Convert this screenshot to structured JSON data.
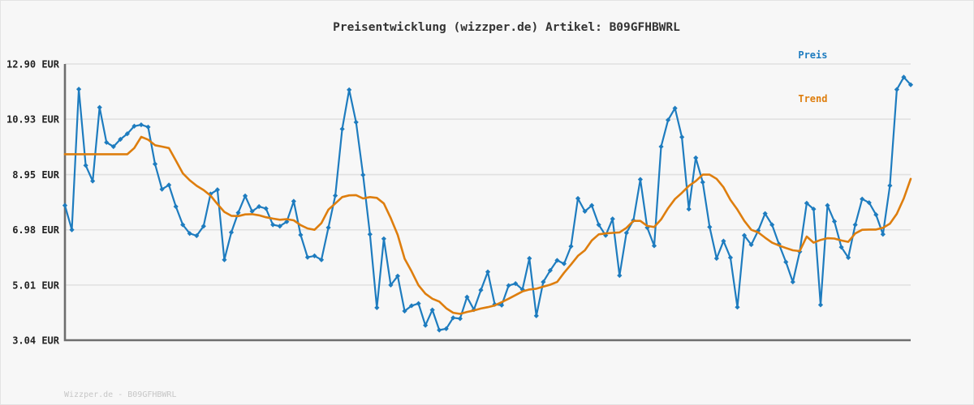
{
  "header": {
    "title": "Preisentwicklung (wizzper.de) Artikel: B09GFHBWRL"
  },
  "legend": {
    "items": [
      {
        "label": "Preis",
        "color": "#1e7cbf"
      },
      {
        "label": "Trend",
        "color": "#de7e0e"
      }
    ]
  },
  "footer": {
    "text": "Wizzper.de - B09GFHBWRL"
  },
  "colors": {
    "background": "#f7f7f7",
    "grid": "#e0e0e0",
    "axis": "#6e6e6e",
    "tick_label": "#222222",
    "title": "#333333",
    "watermark": "#c6c6c6",
    "price_line": "#1e7cbf",
    "trend_line": "#de7e0e"
  },
  "chart_data": {
    "type": "line",
    "title": "Preisentwicklung (wizzper.de) Artikel: B09GFHBWRL",
    "xlabel": "",
    "ylabel": "",
    "currency": "EUR",
    "grid": true,
    "legend_position": "top-right",
    "x_tick_labels": [],
    "ylim": [
      3.04,
      12.9
    ],
    "y_ticks": [
      {
        "label": "12.90 EUR",
        "value": 12.9
      },
      {
        "label": "10.93 EUR",
        "value": 10.93
      },
      {
        "label": "8.95 EUR",
        "value": 8.95
      },
      {
        "label": "6.98 EUR",
        "value": 6.98
      },
      {
        "label": "5.01 EUR",
        "value": 5.01
      },
      {
        "label": "3.04 EUR",
        "value": 3.04
      }
    ],
    "series": [
      {
        "name": "Preis",
        "color": "#1e7cbf",
        "marker": "diamond",
        "line_width": 2.2,
        "values": [
          7.85,
          6.98,
          12.0,
          9.28,
          8.72,
          11.35,
          10.1,
          9.95,
          10.21,
          10.41,
          10.68,
          10.73,
          10.65,
          9.33,
          8.43,
          8.58,
          7.81,
          7.16,
          6.85,
          6.77,
          7.11,
          8.26,
          8.41,
          5.91,
          6.89,
          7.59,
          8.19,
          7.64,
          7.81,
          7.74,
          7.16,
          7.11,
          7.27,
          8.0,
          6.8,
          6.0,
          6.05,
          5.91,
          7.06,
          8.2,
          10.58,
          11.98,
          10.82,
          8.94,
          6.82,
          4.2,
          6.66,
          5.01,
          5.33,
          4.08,
          4.27,
          4.35,
          3.57,
          4.12,
          3.4,
          3.45,
          3.84,
          3.81,
          4.58,
          4.13,
          4.83,
          5.48,
          4.32,
          4.29,
          4.99,
          5.06,
          4.85,
          5.96,
          3.91,
          5.12,
          5.53,
          5.89,
          5.77,
          6.39,
          8.1,
          7.64,
          7.85,
          7.16,
          6.78,
          7.37,
          5.35,
          6.87,
          7.32,
          8.78,
          7.06,
          6.41,
          9.95,
          10.9,
          11.32,
          10.29,
          7.72,
          9.55,
          8.68,
          7.08,
          5.96,
          6.58,
          5.99,
          4.22,
          6.78,
          6.45,
          6.95,
          7.56,
          7.16,
          6.47,
          5.83,
          5.12,
          6.2,
          7.93,
          7.72,
          4.3,
          7.85,
          7.28,
          6.36,
          5.99,
          7.16,
          8.08,
          7.95,
          7.52,
          6.82,
          8.56,
          11.99,
          12.43,
          12.16
        ]
      },
      {
        "name": "Trend",
        "color": "#de7e0e",
        "marker": "none",
        "line_width": 2.6,
        "values": [
          9.68,
          9.68,
          9.68,
          9.68,
          9.68,
          9.68,
          9.68,
          9.68,
          9.68,
          9.68,
          9.9,
          10.3,
          10.2,
          10.0,
          9.95,
          9.9,
          9.45,
          9.0,
          8.75,
          8.55,
          8.4,
          8.2,
          7.9,
          7.62,
          7.48,
          7.47,
          7.53,
          7.54,
          7.5,
          7.43,
          7.38,
          7.34,
          7.36,
          7.32,
          7.15,
          7.03,
          6.98,
          7.22,
          7.7,
          7.92,
          8.15,
          8.21,
          8.22,
          8.1,
          8.15,
          8.12,
          7.92,
          7.4,
          6.8,
          5.95,
          5.5,
          5.0,
          4.7,
          4.52,
          4.42,
          4.18,
          4.02,
          3.98,
          4.05,
          4.1,
          4.17,
          4.22,
          4.28,
          4.4,
          4.52,
          4.65,
          4.78,
          4.85,
          4.88,
          4.95,
          5.02,
          5.12,
          5.45,
          5.74,
          6.05,
          6.25,
          6.6,
          6.82,
          6.85,
          6.87,
          6.89,
          7.05,
          7.3,
          7.3,
          7.12,
          7.08,
          7.35,
          7.75,
          8.08,
          8.3,
          8.55,
          8.72,
          8.95,
          8.95,
          8.8,
          8.5,
          8.05,
          7.7,
          7.3,
          6.98,
          6.89,
          6.7,
          6.52,
          6.42,
          6.33,
          6.25,
          6.22,
          6.74,
          6.52,
          6.62,
          6.68,
          6.67,
          6.6,
          6.55,
          6.85,
          6.98,
          6.99,
          6.99,
          7.05,
          7.2,
          7.55,
          8.1,
          8.8
        ]
      }
    ]
  }
}
